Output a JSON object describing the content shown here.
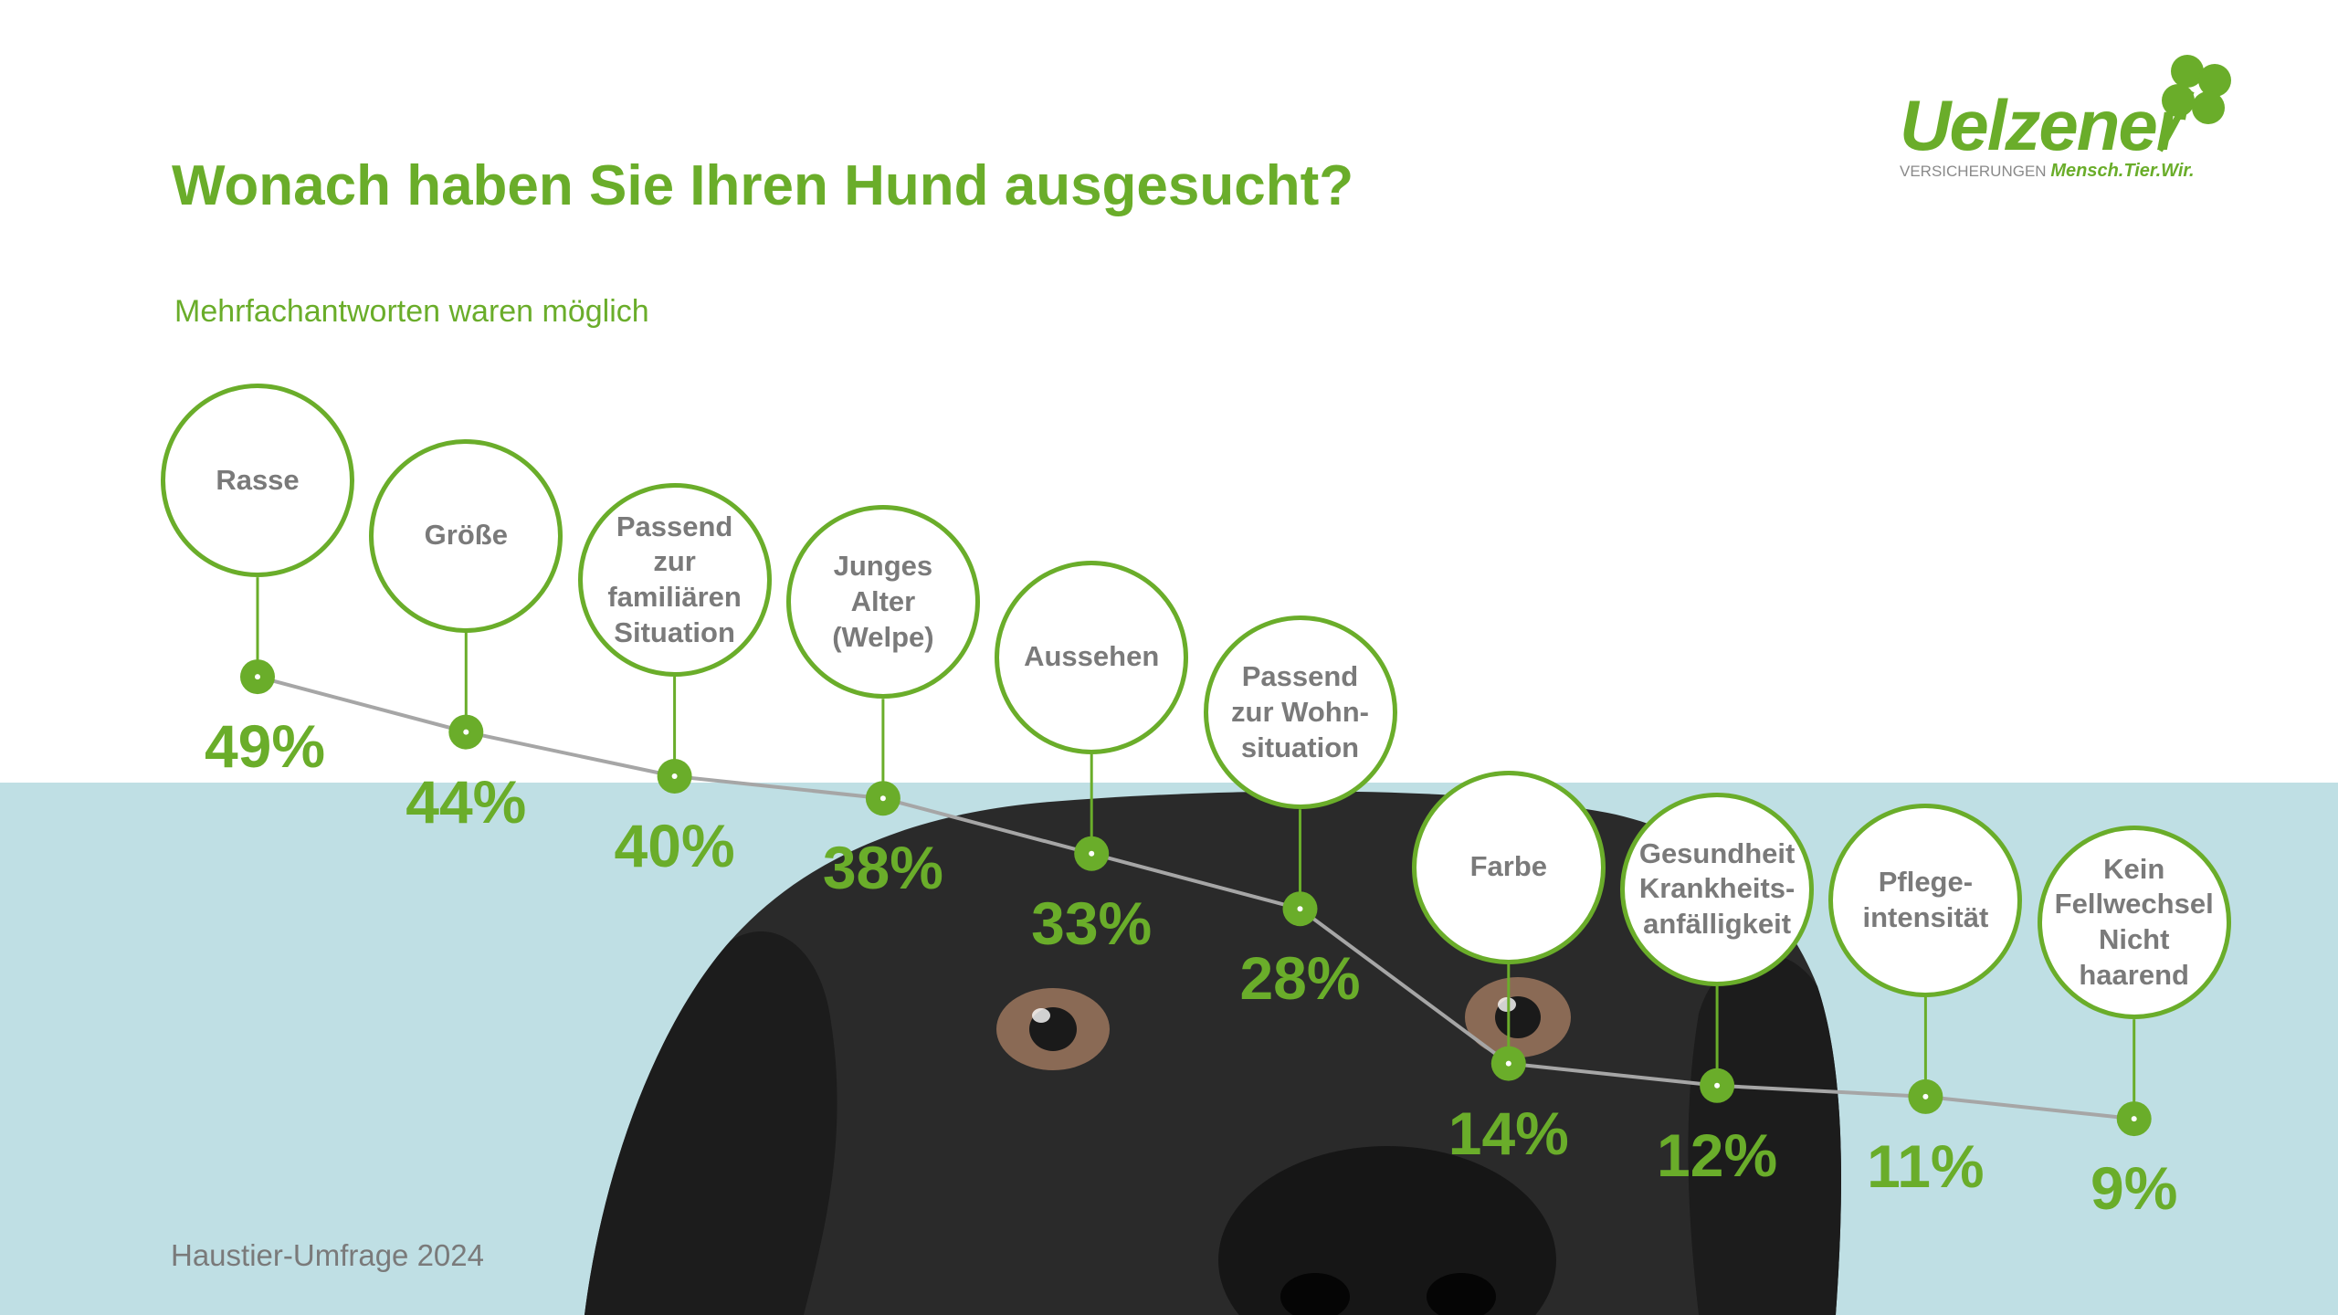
{
  "chart_data": {
    "type": "line",
    "title": "Wonach haben Sie Ihren Hund ausgesucht?",
    "subtitle": "Mehrfachantworten waren möglich",
    "categories": [
      "Rasse",
      "Größe",
      "Passend\nzur\nfamiliären\nSituation",
      "Junges\nAlter\n(Welpe)",
      "Aussehen",
      "Passend\nzur Wohn-\nsituation",
      "Farbe",
      "Gesundheit\nKrankheits-\nanfälligkeit",
      "Pflege-\nintensität",
      "Kein\nFellwechsel\nNicht\nhaarend"
    ],
    "values": [
      49,
      44,
      40,
      38,
      33,
      28,
      14,
      12,
      11,
      9
    ],
    "value_labels": [
      "49%",
      "44%",
      "40%",
      "38%",
      "33%",
      "28%",
      "14%",
      "12%",
      "11%",
      "9%"
    ],
    "color": "#6aad2a",
    "line_color": "#a6a6a6",
    "note": "Haustier-Umfrage 2024"
  },
  "logo": {
    "name": "Uelzener",
    "tagline_left": "VERSICHERUNGEN",
    "tagline_right": "Mensch.Tier.Wir."
  }
}
